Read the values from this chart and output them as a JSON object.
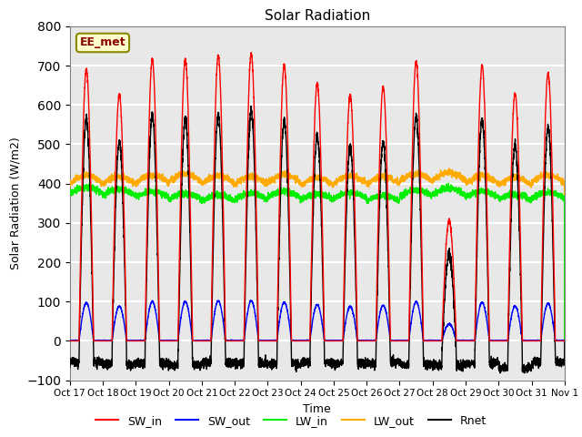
{
  "title": "Solar Radiation",
  "xlabel": "Time",
  "ylabel": "Solar Radiation (W/m2)",
  "ylim": [
    -100,
    800
  ],
  "yticks": [
    -100,
    0,
    100,
    200,
    300,
    400,
    500,
    600,
    700,
    800
  ],
  "xtick_labels": [
    "Oct 17",
    "Oct 18",
    "Oct 19",
    "Oct 20",
    "Oct 21",
    "Oct 22",
    "Oct 23",
    "Oct 24",
    "Oct 25",
    "Oct 26",
    "Oct 27",
    "Oct 28",
    "Oct 29",
    "Oct 30",
    "Oct 31",
    "Nov 1"
  ],
  "station_label": "EE_met",
  "background_color": "#e8e8e8",
  "grid_color": "white",
  "series": {
    "SW_in": {
      "color": "#ff0000",
      "lw": 1.0
    },
    "SW_out": {
      "color": "#0000ff",
      "lw": 1.0
    },
    "LW_in": {
      "color": "#00ee00",
      "lw": 1.0
    },
    "LW_out": {
      "color": "#ffaa00",
      "lw": 1.0
    },
    "Rnet": {
      "color": "#000000",
      "lw": 1.0
    }
  },
  "n_days": 15,
  "pts_per_day": 288,
  "seed": 42,
  "sw_in_peaks": [
    690,
    625,
    715,
    715,
    725,
    730,
    700,
    655,
    625,
    645,
    710,
    305,
    700,
    630,
    680
  ],
  "lw_in_base": [
    375,
    370,
    365,
    360,
    355,
    360,
    365,
    358,
    362,
    355,
    368,
    372,
    365,
    358,
    362
  ],
  "lw_out_base": [
    400,
    398,
    402,
    405,
    400,
    398,
    402,
    395,
    400,
    398,
    405,
    408,
    400,
    395,
    402
  ],
  "night_rnet": [
    -55,
    -60,
    -58,
    -62,
    -55,
    -57,
    -60,
    -55,
    -58,
    -55,
    -60,
    -62,
    -58,
    -70,
    -55
  ]
}
